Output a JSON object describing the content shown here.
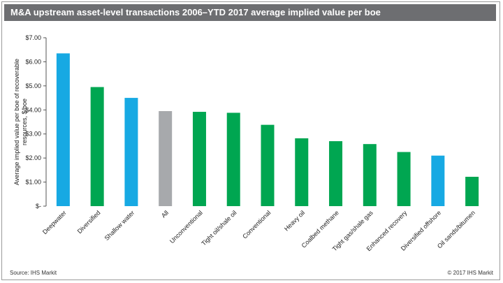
{
  "header": {
    "title": "M&A upstream asset-level transactions 2006–YTD 2017 average implied value per boe"
  },
  "footer": {
    "source": "Source: IHS Markit",
    "copyright": "© 2017 IHS Markit"
  },
  "colors": {
    "offshore": "#17a9e3",
    "onshore": "#00a651",
    "all": "#a7a9ac",
    "title_bg": "#6d6e71"
  },
  "chart_data": {
    "type": "bar",
    "title": "M&A upstream asset-level transactions 2006–YTD 2017 average implied value per boe",
    "xlabel": "",
    "ylabel": "Average implied value per boe of recoverable resources, $/boe",
    "ylim": [
      0,
      7
    ],
    "yticks": [
      0,
      1,
      2,
      3,
      4,
      5,
      6,
      7
    ],
    "ytick_labels": [
      "$-",
      "$1.00",
      "$2.00",
      "$3.00",
      "$4.00",
      "$5.00",
      "$6.00",
      "$7.00"
    ],
    "grid": false,
    "categories": [
      "Deepwater",
      "Diversified",
      "Shallow water",
      "All",
      "Unconventional",
      "Tight oil/shale oil",
      "Conventional",
      "Heavy oil",
      "Coalbed methane",
      "Tight gas/shale gas",
      "Enhanced recovery",
      "Diversified offshore",
      "Oil sands/bitumen"
    ],
    "values": [
      6.35,
      4.95,
      4.5,
      3.95,
      3.92,
      3.88,
      3.38,
      2.82,
      2.7,
      2.58,
      2.25,
      2.1,
      1.22
    ],
    "groups": [
      "offshore",
      "onshore",
      "offshore",
      "all",
      "onshore",
      "onshore",
      "onshore",
      "onshore",
      "onshore",
      "onshore",
      "onshore",
      "offshore",
      "onshore"
    ]
  }
}
